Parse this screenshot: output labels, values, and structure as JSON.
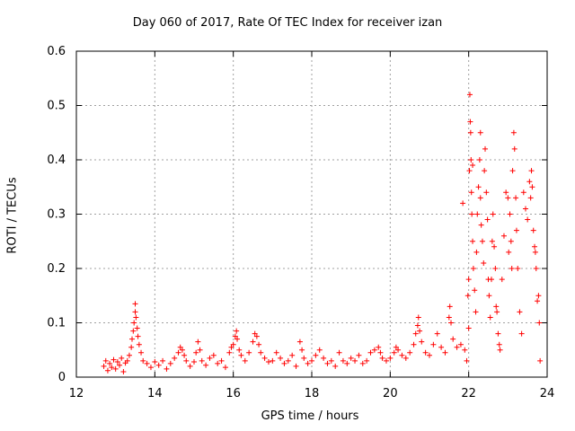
{
  "chart_data": {
    "type": "scatter",
    "title": "Day 060 of 2017, Rate Of TEC Index for receiver izan",
    "xlabel": "GPS time / hours",
    "ylabel": "ROTI / TECUs",
    "xlim": [
      12,
      24
    ],
    "ylim": [
      0,
      0.6
    ],
    "x_ticks": [
      12,
      14,
      16,
      18,
      20,
      22,
      24
    ],
    "y_ticks": [
      0,
      0.1,
      0.2,
      0.3,
      0.4,
      0.5,
      0.6
    ],
    "x_tick_labels": [
      "12",
      "14",
      "16",
      "18",
      "20",
      "22",
      "24"
    ],
    "y_tick_labels": [
      "0",
      "0.1",
      "0.2",
      "0.3",
      "0.4",
      "0.5",
      "0.6"
    ],
    "grid": true,
    "marker": "+",
    "series": [
      {
        "name": "ROTI",
        "color": "#ff0000",
        "points": [
          [
            12.7,
            0.02
          ],
          [
            12.75,
            0.03
          ],
          [
            12.8,
            0.012
          ],
          [
            12.85,
            0.025
          ],
          [
            12.9,
            0.018
          ],
          [
            12.95,
            0.032
          ],
          [
            13.0,
            0.015
          ],
          [
            13.05,
            0.028
          ],
          [
            13.1,
            0.022
          ],
          [
            13.15,
            0.035
          ],
          [
            13.2,
            0.01
          ],
          [
            13.25,
            0.026
          ],
          [
            13.3,
            0.03
          ],
          [
            13.35,
            0.04
          ],
          [
            13.4,
            0.055
          ],
          [
            13.42,
            0.07
          ],
          [
            13.45,
            0.085
          ],
          [
            13.47,
            0.1
          ],
          [
            13.5,
            0.12
          ],
          [
            13.5,
            0.135
          ],
          [
            13.52,
            0.11
          ],
          [
            13.55,
            0.09
          ],
          [
            13.57,
            0.075
          ],
          [
            13.6,
            0.06
          ],
          [
            13.65,
            0.045
          ],
          [
            13.7,
            0.03
          ],
          [
            13.8,
            0.025
          ],
          [
            13.9,
            0.018
          ],
          [
            14.0,
            0.028
          ],
          [
            14.1,
            0.022
          ],
          [
            14.2,
            0.03
          ],
          [
            14.3,
            0.015
          ],
          [
            14.4,
            0.025
          ],
          [
            14.5,
            0.035
          ],
          [
            14.6,
            0.045
          ],
          [
            14.65,
            0.055
          ],
          [
            14.7,
            0.05
          ],
          [
            14.75,
            0.04
          ],
          [
            14.8,
            0.03
          ],
          [
            14.9,
            0.02
          ],
          [
            15.0,
            0.028
          ],
          [
            15.05,
            0.045
          ],
          [
            15.1,
            0.065
          ],
          [
            15.15,
            0.05
          ],
          [
            15.2,
            0.03
          ],
          [
            15.3,
            0.022
          ],
          [
            15.4,
            0.035
          ],
          [
            15.5,
            0.04
          ],
          [
            15.6,
            0.025
          ],
          [
            15.7,
            0.03
          ],
          [
            15.8,
            0.018
          ],
          [
            15.9,
            0.045
          ],
          [
            15.95,
            0.055
          ],
          [
            16.0,
            0.06
          ],
          [
            16.05,
            0.075
          ],
          [
            16.08,
            0.085
          ],
          [
            16.1,
            0.07
          ],
          [
            16.15,
            0.05
          ],
          [
            16.2,
            0.04
          ],
          [
            16.3,
            0.03
          ],
          [
            16.4,
            0.045
          ],
          [
            16.5,
            0.065
          ],
          [
            16.55,
            0.08
          ],
          [
            16.6,
            0.075
          ],
          [
            16.65,
            0.06
          ],
          [
            16.7,
            0.045
          ],
          [
            16.8,
            0.035
          ],
          [
            16.9,
            0.028
          ],
          [
            17.0,
            0.03
          ],
          [
            17.1,
            0.045
          ],
          [
            17.2,
            0.035
          ],
          [
            17.3,
            0.025
          ],
          [
            17.4,
            0.03
          ],
          [
            17.5,
            0.04
          ],
          [
            17.6,
            0.02
          ],
          [
            17.7,
            0.065
          ],
          [
            17.75,
            0.05
          ],
          [
            17.8,
            0.035
          ],
          [
            17.9,
            0.025
          ],
          [
            18.0,
            0.03
          ],
          [
            18.1,
            0.04
          ],
          [
            18.2,
            0.05
          ],
          [
            18.3,
            0.035
          ],
          [
            18.4,
            0.025
          ],
          [
            18.5,
            0.03
          ],
          [
            18.6,
            0.02
          ],
          [
            18.7,
            0.045
          ],
          [
            18.8,
            0.03
          ],
          [
            18.9,
            0.025
          ],
          [
            19.0,
            0.035
          ],
          [
            19.1,
            0.03
          ],
          [
            19.2,
            0.04
          ],
          [
            19.3,
            0.025
          ],
          [
            19.4,
            0.03
          ],
          [
            19.5,
            0.045
          ],
          [
            19.6,
            0.05
          ],
          [
            19.7,
            0.055
          ],
          [
            19.75,
            0.045
          ],
          [
            19.8,
            0.035
          ],
          [
            19.9,
            0.03
          ],
          [
            20.0,
            0.035
          ],
          [
            20.1,
            0.045
          ],
          [
            20.15,
            0.055
          ],
          [
            20.2,
            0.05
          ],
          [
            20.3,
            0.04
          ],
          [
            20.4,
            0.035
          ],
          [
            20.5,
            0.045
          ],
          [
            20.6,
            0.06
          ],
          [
            20.65,
            0.08
          ],
          [
            20.7,
            0.095
          ],
          [
            20.72,
            0.11
          ],
          [
            20.75,
            0.085
          ],
          [
            20.8,
            0.065
          ],
          [
            20.9,
            0.045
          ],
          [
            21.0,
            0.04
          ],
          [
            21.1,
            0.06
          ],
          [
            21.2,
            0.08
          ],
          [
            21.3,
            0.055
          ],
          [
            21.4,
            0.045
          ],
          [
            21.5,
            0.11
          ],
          [
            21.52,
            0.13
          ],
          [
            21.55,
            0.1
          ],
          [
            21.6,
            0.07
          ],
          [
            21.7,
            0.055
          ],
          [
            21.8,
            0.06
          ],
          [
            21.85,
            0.32
          ],
          [
            21.9,
            0.05
          ],
          [
            21.95,
            0.03
          ],
          [
            21.98,
            0.15
          ],
          [
            22.0,
            0.09
          ],
          [
            22.0,
            0.18
          ],
          [
            22.02,
            0.38
          ],
          [
            22.03,
            0.52
          ],
          [
            22.04,
            0.47
          ],
          [
            22.05,
            0.45
          ],
          [
            22.06,
            0.4
          ],
          [
            22.07,
            0.34
          ],
          [
            22.08,
            0.3
          ],
          [
            22.1,
            0.25
          ],
          [
            22.1,
            0.39
          ],
          [
            22.12,
            0.2
          ],
          [
            22.15,
            0.16
          ],
          [
            22.18,
            0.12
          ],
          [
            22.2,
            0.23
          ],
          [
            22.22,
            0.3
          ],
          [
            22.25,
            0.35
          ],
          [
            22.28,
            0.4
          ],
          [
            22.3,
            0.33
          ],
          [
            22.3,
            0.45
          ],
          [
            22.32,
            0.28
          ],
          [
            22.35,
            0.25
          ],
          [
            22.38,
            0.21
          ],
          [
            22.4,
            0.38
          ],
          [
            22.42,
            0.42
          ],
          [
            22.45,
            0.34
          ],
          [
            22.48,
            0.29
          ],
          [
            22.5,
            0.18
          ],
          [
            22.52,
            0.15
          ],
          [
            22.55,
            0.11
          ],
          [
            22.58,
            0.18
          ],
          [
            22.6,
            0.25
          ],
          [
            22.62,
            0.3
          ],
          [
            22.65,
            0.24
          ],
          [
            22.68,
            0.2
          ],
          [
            22.7,
            0.13
          ],
          [
            22.72,
            0.12
          ],
          [
            22.75,
            0.08
          ],
          [
            22.78,
            0.06
          ],
          [
            22.8,
            0.05
          ],
          [
            22.85,
            0.18
          ],
          [
            22.9,
            0.26
          ],
          [
            22.95,
            0.34
          ],
          [
            23.0,
            0.33
          ],
          [
            23.02,
            0.23
          ],
          [
            23.05,
            0.3
          ],
          [
            23.08,
            0.25
          ],
          [
            23.1,
            0.2
          ],
          [
            23.12,
            0.38
          ],
          [
            23.15,
            0.45
          ],
          [
            23.17,
            0.42
          ],
          [
            23.2,
            0.33
          ],
          [
            23.22,
            0.27
          ],
          [
            23.25,
            0.2
          ],
          [
            23.3,
            0.12
          ],
          [
            23.35,
            0.08
          ],
          [
            23.4,
            0.34
          ],
          [
            23.45,
            0.31
          ],
          [
            23.5,
            0.29
          ],
          [
            23.55,
            0.36
          ],
          [
            23.58,
            0.33
          ],
          [
            23.6,
            0.38
          ],
          [
            23.62,
            0.35
          ],
          [
            23.65,
            0.27
          ],
          [
            23.68,
            0.24
          ],
          [
            23.7,
            0.23
          ],
          [
            23.72,
            0.2
          ],
          [
            23.75,
            0.14
          ],
          [
            23.78,
            0.15
          ],
          [
            23.8,
            0.1
          ],
          [
            23.82,
            0.03
          ]
        ]
      }
    ]
  }
}
